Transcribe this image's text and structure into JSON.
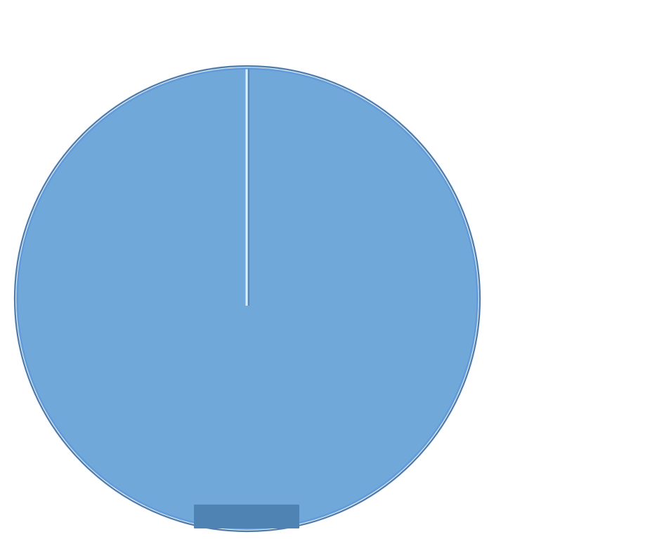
{
  "chart_data": {
    "type": "pie",
    "title": "",
    "categories": [
      ""
    ],
    "values": [
      100
    ],
    "colors": [
      "#6fa8d9"
    ],
    "slice_label_background": "#4f83b4",
    "edge_colors": [
      "#4f79a8",
      "#5b8fdd",
      "#d9f0fb"
    ],
    "legend": {
      "position": "right",
      "entries": [
        ""
      ]
    },
    "start_angle": "12 o'clock",
    "direction": "clockwise"
  }
}
